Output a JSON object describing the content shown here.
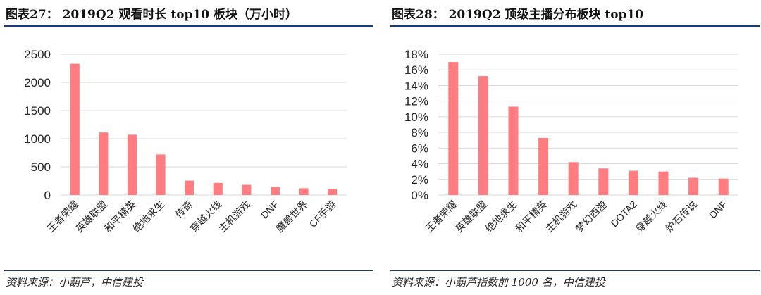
{
  "charts": [
    {
      "title": "图表27： 2019Q2 观看时长 top10 板块（万小时）",
      "source": "资料来源：小葫芦，中信建投",
      "chart_data": {
        "type": "bar",
        "categories": [
          "王者荣耀",
          "英雄联盟",
          "和平精英",
          "绝地求生",
          "传奇",
          "穿越火线",
          "主机游戏",
          "DNF",
          "魔兽世界",
          "CF手游"
        ],
        "values": [
          2330,
          1110,
          1070,
          720,
          255,
          215,
          180,
          145,
          120,
          110
        ],
        "ylim": [
          0,
          2500
        ],
        "yticks": [
          0,
          500,
          1000,
          1500,
          2000,
          2500
        ],
        "ytick_labels": [
          "0",
          "500",
          "1000",
          "1500",
          "2000",
          "2500"
        ],
        "grid": true,
        "bar_color": "#ff7c80"
      }
    },
    {
      "title": "图表28： 2019Q2 顶级主播分布板块 top10",
      "source": "资料来源：小葫芦指数前 1000 名，中信建投",
      "chart_data": {
        "type": "bar",
        "categories": [
          "王者荣耀",
          "英雄联盟",
          "绝地求生",
          "和平精英",
          "主机游戏",
          "梦幻西游",
          "DOTA2",
          "穿越火线",
          "炉石传说",
          "DNF"
        ],
        "values": [
          17.0,
          15.2,
          11.3,
          7.3,
          4.2,
          3.4,
          3.1,
          3.0,
          2.2,
          2.1
        ],
        "ylim": [
          0,
          18
        ],
        "yticks": [
          0,
          2,
          4,
          6,
          8,
          10,
          12,
          14,
          16,
          18
        ],
        "ytick_labels": [
          "0%",
          "2%",
          "4%",
          "6%",
          "8%",
          "10%",
          "12%",
          "14%",
          "16%",
          "18%"
        ],
        "grid": true,
        "bar_color": "#ff7c80"
      }
    }
  ]
}
